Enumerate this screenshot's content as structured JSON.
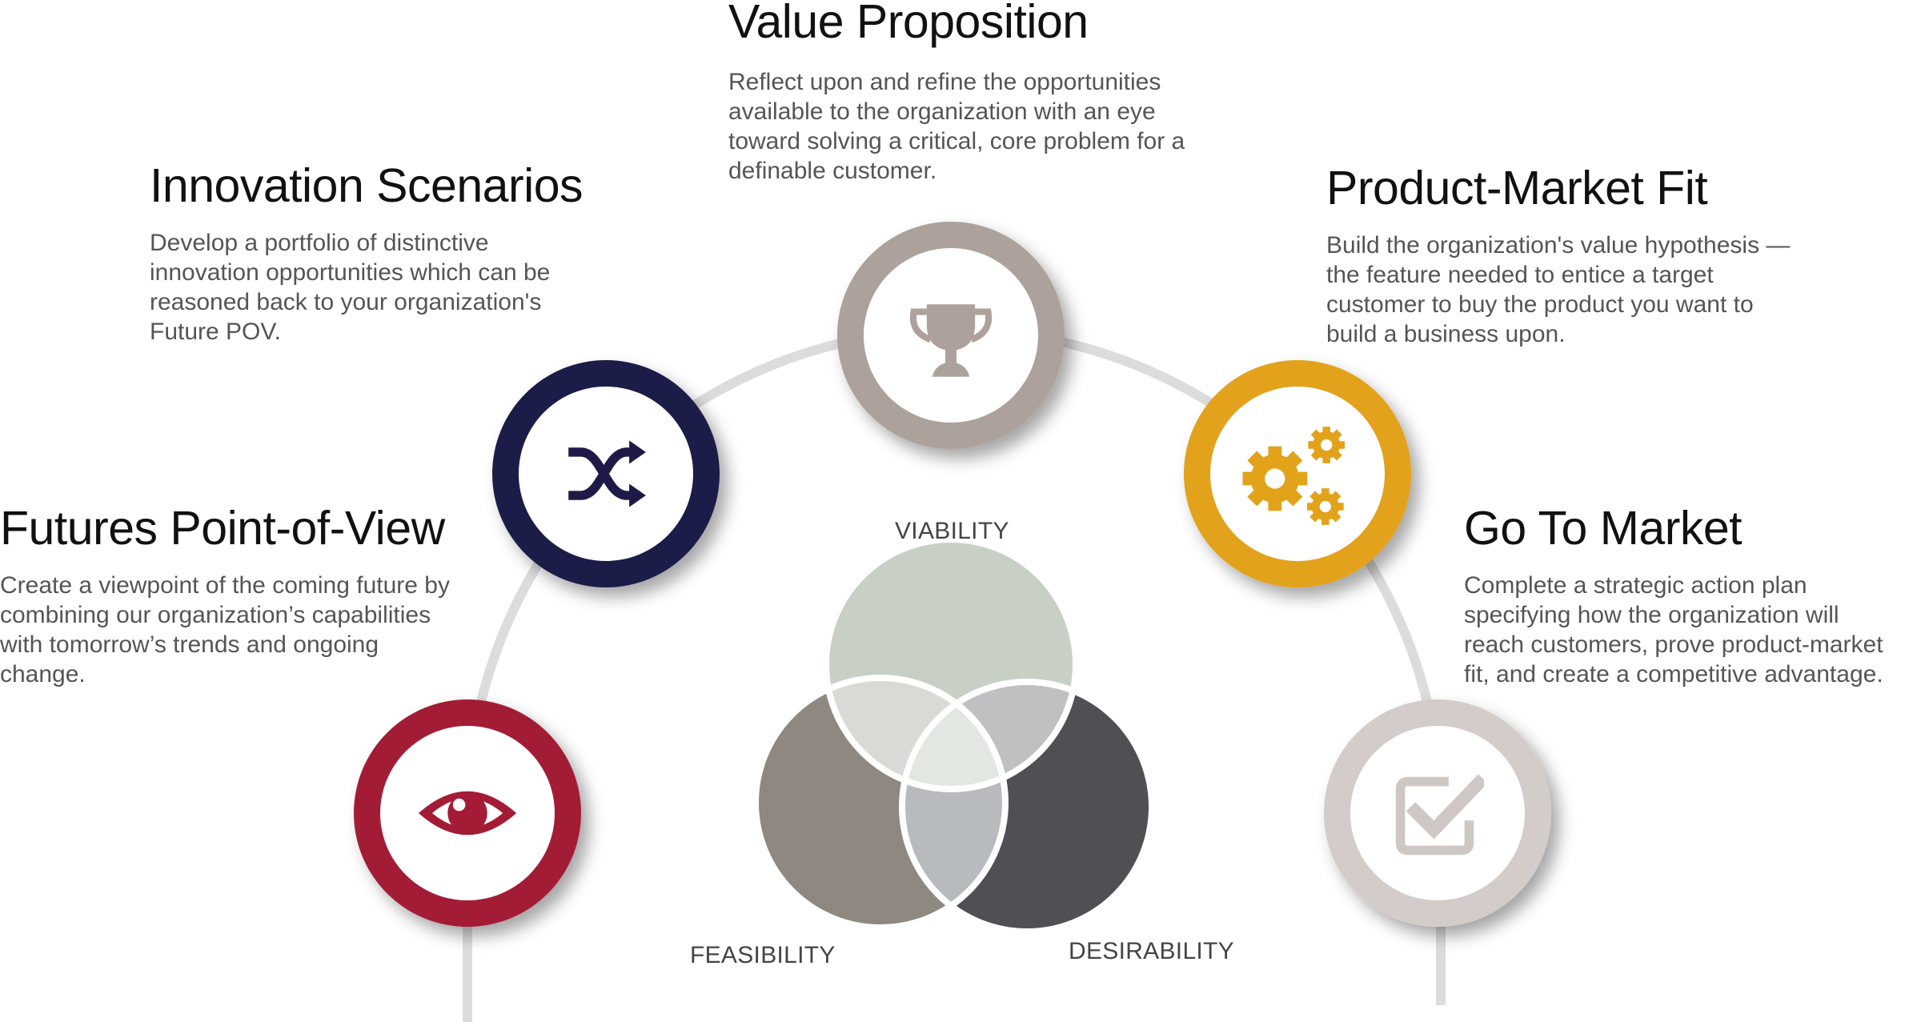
{
  "stages": [
    {
      "id": "futures-pov",
      "title": "Futures Point-of-View",
      "description": "Create a viewpoint of the coming future by combining our organization’s capabilities with tomorrow’s trends and ongoing change.",
      "color": "#A31B35",
      "icon": "eye-icon"
    },
    {
      "id": "innovation-scenarios",
      "title": "Innovation Scenarios",
      "description": "Develop a portfolio of distinctive innovation opportunities which can be reasoned back to your organization's Future POV.",
      "color": "#1E1A48",
      "icon": "shuffle-arrows-icon"
    },
    {
      "id": "value-proposition",
      "title": "Value Proposition",
      "description": "Reflect upon and refine the opportunities available to the organization with an eye toward solving a critical, core problem for a definable customer.",
      "color": "#ADA19B",
      "icon": "trophy-icon"
    },
    {
      "id": "product-market-fit",
      "title": "Product-Market Fit",
      "description": "Build the organization's value hypothesis — the feature needed to entice a target customer to buy the product you want to build a business upon.",
      "color": "#E2A21A",
      "icon": "gears-icon"
    },
    {
      "id": "go-to-market",
      "title": "Go To Market",
      "description": "Complete a strategic action plan specifying how the organization will reach customers, prove product-market fit, and create a competitive advantage.",
      "color": "#D3CCC9",
      "icon": "checkbox-icon"
    }
  ],
  "venn": {
    "top_label": "VIABILITY",
    "left_label": "FEASIBILITY",
    "right_label": "DESIRABILITY",
    "colors": {
      "viability": "#C8D0C5",
      "feasibility": "#8F8880",
      "desirability": "#4E5053",
      "overlap_viability_feasibility": "#D9D9D6",
      "overlap_viability_desirability": "#BEC0C2",
      "overlap_feasibility_desirability": "#B8BBBD",
      "center": "#E3E7E1"
    }
  },
  "arc_color": "#DCDCDC"
}
